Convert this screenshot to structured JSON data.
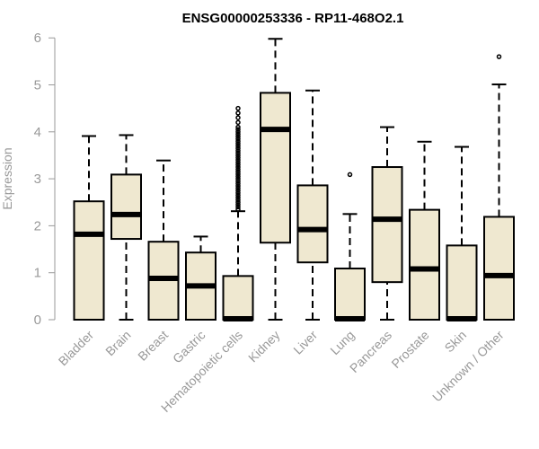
{
  "chart_data": {
    "type": "box",
    "title": "ENSG00000253336 - RP11-468O2.1",
    "xlabel": "",
    "ylabel": "Expression",
    "ylim": [
      0,
      6
    ],
    "yticks": [
      0,
      1,
      2,
      3,
      4,
      5,
      6
    ],
    "grid": false,
    "legend": "none",
    "box_fill": "#EFE8D0",
    "box_stroke": "#000000",
    "categories": [
      "Bladder",
      "Brain",
      "Breast",
      "Gastric",
      "Hematopoietic cells",
      "Kidney",
      "Liver",
      "Lung",
      "Pancreas",
      "Prostate",
      "Skin",
      "Unknown / Other"
    ],
    "boxes": [
      {
        "category": "Bladder",
        "whisker_low": 0.0,
        "q1": 0.0,
        "median": 1.82,
        "q3": 2.52,
        "whisker_high": 3.91,
        "outliers": []
      },
      {
        "category": "Brain",
        "whisker_low": 0.0,
        "q1": 1.72,
        "median": 2.24,
        "q3": 3.09,
        "whisker_high": 3.93,
        "outliers": []
      },
      {
        "category": "Breast",
        "whisker_low": 0.0,
        "q1": 0.0,
        "median": 0.88,
        "q3": 1.66,
        "whisker_high": 3.39,
        "outliers": []
      },
      {
        "category": "Gastric",
        "whisker_low": 0.0,
        "q1": 0.0,
        "median": 0.72,
        "q3": 1.43,
        "whisker_high": 1.77,
        "outliers": []
      },
      {
        "category": "Hematopoietic cells",
        "whisker_low": 0.0,
        "q1": 0.0,
        "median": 0.02,
        "q3": 0.93,
        "whisker_high": 2.31,
        "outliers": [
          2.35,
          2.4,
          2.45,
          2.5,
          2.55,
          2.6,
          2.65,
          2.7,
          2.75,
          2.8,
          2.85,
          2.9,
          2.95,
          3.0,
          3.05,
          3.1,
          3.15,
          3.2,
          3.25,
          3.3,
          3.35,
          3.4,
          3.45,
          3.5,
          3.55,
          3.6,
          3.65,
          3.7,
          3.75,
          3.8,
          3.85,
          3.9,
          3.95,
          4.0,
          4.05,
          4.1,
          4.2,
          4.3,
          4.4,
          4.5
        ]
      },
      {
        "category": "Kidney",
        "whisker_low": 0.0,
        "q1": 1.64,
        "median": 4.05,
        "q3": 4.83,
        "whisker_high": 5.98,
        "outliers": []
      },
      {
        "category": "Liver",
        "whisker_low": 0.0,
        "q1": 1.22,
        "median": 1.92,
        "q3": 2.86,
        "whisker_high": 4.88,
        "outliers": []
      },
      {
        "category": "Lung",
        "whisker_low": 0.0,
        "q1": 0.0,
        "median": 0.02,
        "q3": 1.09,
        "whisker_high": 2.25,
        "outliers": [
          3.09
        ]
      },
      {
        "category": "Pancreas",
        "whisker_low": 0.0,
        "q1": 0.8,
        "median": 2.14,
        "q3": 3.25,
        "whisker_high": 4.1,
        "outliers": []
      },
      {
        "category": "Prostate",
        "whisker_low": 0.0,
        "q1": 0.0,
        "median": 1.08,
        "q3": 2.34,
        "whisker_high": 3.79,
        "outliers": []
      },
      {
        "category": "Skin",
        "whisker_low": 0.0,
        "q1": 0.0,
        "median": 0.02,
        "q3": 1.58,
        "whisker_high": 3.68,
        "outliers": []
      },
      {
        "category": "Unknown / Other",
        "whisker_low": 0.0,
        "q1": 0.0,
        "median": 0.94,
        "q3": 2.19,
        "whisker_high": 5.01,
        "outliers": [
          5.6
        ]
      }
    ]
  }
}
